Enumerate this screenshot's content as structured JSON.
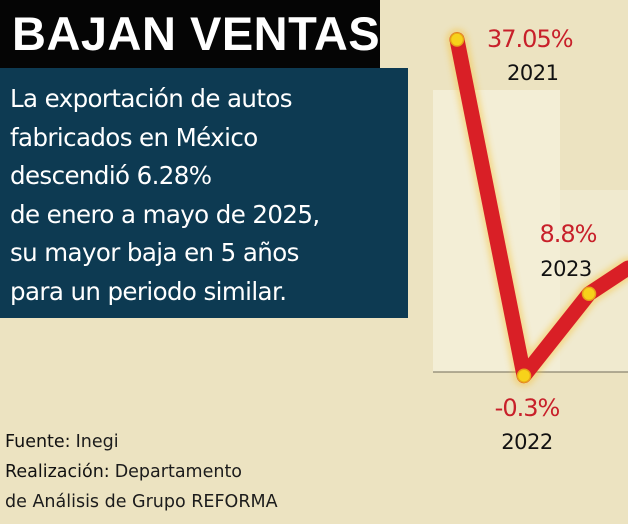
{
  "header": {
    "title": "BAJAN VENTAS",
    "lines": [
      "La exportación de autos",
      "fabricados en México",
      "descendió 6.28%",
      "de enero a mayo de 2025,",
      "su mayor baja en 5 años",
      "para un periodo similar."
    ]
  },
  "credits": {
    "source_label": "Fuente:",
    "source_value": " Inegi",
    "made_label": "Realización:",
    "made_value": " Departamento",
    "made_value_2": "de Análisis de Grupo REFORMA"
  },
  "colors": {
    "background": "#ece3c1",
    "panel": "#0d3a52",
    "title_bg": "#050505",
    "line": "#d91f26",
    "marker": "#f7d21a",
    "value_text": "#c8202a"
  },
  "chart_data": {
    "type": "line",
    "categories": [
      "2021",
      "2022",
      "2023"
    ],
    "values": [
      37.05,
      -0.3,
      8.8
    ],
    "value_labels": [
      "37.05%",
      "-0.3%",
      "8.8%"
    ],
    "grid": false
  }
}
